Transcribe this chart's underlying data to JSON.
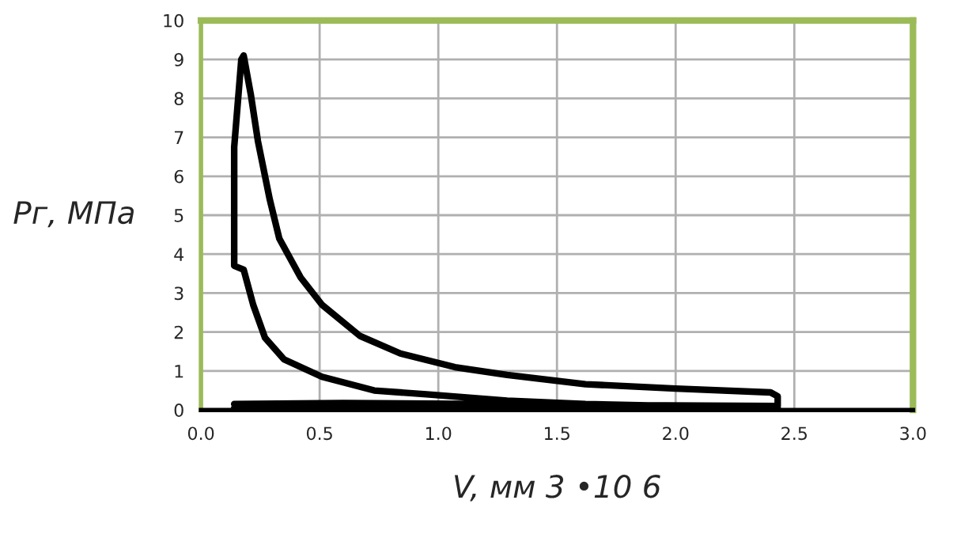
{
  "chart_data": {
    "type": "line",
    "xlabel": "V, мм 3 •10 6",
    "ylabel": "Pг, МПа",
    "series": [
      {
        "color": "#000000",
        "x": [
          0.14,
          0.6,
          1.2,
          1.8,
          2.43,
          2.0,
          1.62,
          1.29,
          0.95,
          0.73,
          0.51,
          0.35,
          0.27,
          0.22,
          0.18,
          0.14,
          0.14,
          0.17,
          0.18,
          0.21,
          0.24,
          0.29,
          0.33,
          0.42,
          0.51,
          0.67,
          0.84,
          1.07,
          1.29,
          1.62,
          2.0,
          2.4,
          2.43,
          2.43,
          1.8,
          1.2,
          0.6,
          0.14
        ],
        "values": [
          0.05,
          0.05,
          0.05,
          0.05,
          0.05,
          0.1,
          0.15,
          0.24,
          0.4,
          0.5,
          0.85,
          1.3,
          1.85,
          2.7,
          3.6,
          3.7,
          6.75,
          9.0,
          9.1,
          8.1,
          6.9,
          5.4,
          4.4,
          3.4,
          2.7,
          1.9,
          1.45,
          1.1,
          0.9,
          0.66,
          0.55,
          0.45,
          0.35,
          0.1,
          0.12,
          0.15,
          0.18,
          0.15
        ]
      }
    ],
    "xlim": [
      0,
      3
    ],
    "ylim": [
      0,
      10
    ],
    "xticks": [
      {
        "value": 0,
        "label": "0.0"
      },
      {
        "value": 0.5,
        "label": "0.5"
      },
      {
        "value": 1,
        "label": "1.0"
      },
      {
        "value": 1.5,
        "label": "1.5"
      },
      {
        "value": 2,
        "label": "2.0"
      },
      {
        "value": 2.5,
        "label": "2.5"
      },
      {
        "value": 3,
        "label": "3.0"
      }
    ],
    "yticks": [
      0,
      1,
      2,
      3,
      4,
      5,
      6,
      7,
      8,
      9,
      10
    ],
    "grid": true,
    "marker": "none",
    "line_style": "solid"
  }
}
